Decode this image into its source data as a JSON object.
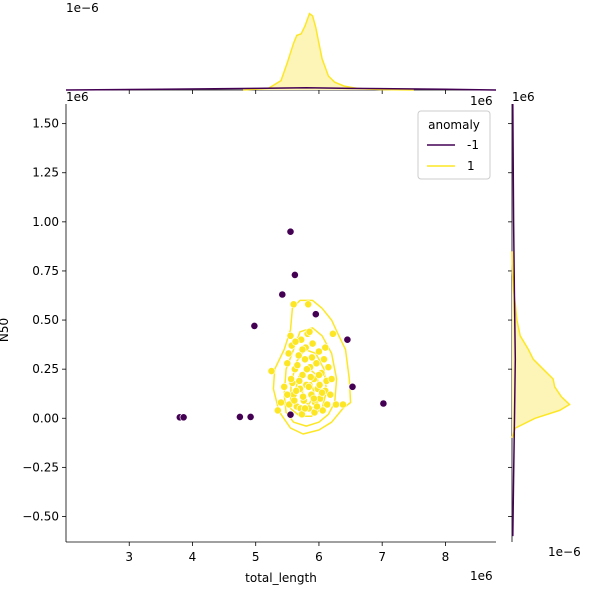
{
  "chart_data": {
    "type": "scatter",
    "xlabel": "total_length",
    "ylabel": "N50",
    "x_offset_label": "1e6",
    "y_offset_label": "1e6",
    "top_marginal_offset_label": "1e−6",
    "right_marginal_offset_label": "1e−6",
    "xlim": [
      2.0,
      8.8
    ],
    "ylim": [
      -0.63,
      1.6
    ],
    "xticks": [
      3,
      4,
      5,
      6,
      7,
      8
    ],
    "xtick_labels": [
      "3",
      "4",
      "5",
      "6",
      "7",
      "8"
    ],
    "yticks": [
      -0.5,
      -0.25,
      0.0,
      0.25,
      0.5,
      0.75,
      1.0,
      1.25,
      1.5
    ],
    "ytick_labels": [
      "−0.50",
      "−0.25",
      "0.00",
      "0.25",
      "0.50",
      "0.75",
      "1.00",
      "1.25",
      "1.50"
    ],
    "legend": {
      "title": "anomaly",
      "placement": "top-right",
      "entries": [
        {
          "label": "-1",
          "color": "#440154"
        },
        {
          "label": "1",
          "color": "#fde725"
        }
      ]
    },
    "colors": {
      "anomaly_neg1": "#440154",
      "anomaly_pos1": "#fde725",
      "kde_fill_pos1": "#fdf5b8",
      "axis": "#000000"
    },
    "marginal_density_x": {
      "series_neg1": [
        [
          2.0,
          0
        ],
        [
          3.5,
          0.01
        ],
        [
          5.0,
          0.02
        ],
        [
          5.8,
          0.03
        ],
        [
          6.5,
          0.02
        ],
        [
          8.0,
          0.01
        ],
        [
          8.8,
          0
        ]
      ],
      "series_pos1": [
        [
          4.8,
          0
        ],
        [
          5.2,
          0.02
        ],
        [
          5.4,
          0.12
        ],
        [
          5.5,
          0.35
        ],
        [
          5.6,
          0.6
        ],
        [
          5.65,
          0.7
        ],
        [
          5.72,
          0.72
        ],
        [
          5.78,
          0.82
        ],
        [
          5.85,
          0.98
        ],
        [
          5.9,
          0.95
        ],
        [
          5.95,
          0.8
        ],
        [
          6.0,
          0.6
        ],
        [
          6.05,
          0.4
        ],
        [
          6.15,
          0.18
        ],
        [
          6.25,
          0.1
        ],
        [
          6.4,
          0.05
        ],
        [
          6.6,
          0.02
        ],
        [
          7.0,
          0.005
        ],
        [
          7.5,
          0
        ]
      ]
    },
    "marginal_density_y": {
      "series_neg1": [
        [
          -0.6,
          0.01
        ],
        [
          -0.3,
          0.02
        ],
        [
          0.0,
          0.03
        ],
        [
          0.3,
          0.04
        ],
        [
          0.6,
          0.03
        ],
        [
          1.0,
          0.02
        ],
        [
          1.6,
          0.01
        ]
      ],
      "series_pos1": [
        [
          -0.1,
          0
        ],
        [
          -0.05,
          0.04
        ],
        [
          0.0,
          0.28
        ],
        [
          0.04,
          0.58
        ],
        [
          0.07,
          0.7
        ],
        [
          0.11,
          0.6
        ],
        [
          0.16,
          0.52
        ],
        [
          0.2,
          0.5
        ],
        [
          0.25,
          0.38
        ],
        [
          0.3,
          0.26
        ],
        [
          0.35,
          0.2
        ],
        [
          0.42,
          0.1
        ],
        [
          0.5,
          0.06
        ],
        [
          0.58,
          0.04
        ],
        [
          0.65,
          0.02
        ],
        [
          0.75,
          0.005
        ],
        [
          0.85,
          0
        ]
      ]
    },
    "series": [
      {
        "name": "-1",
        "color": "#440154",
        "points": [
          [
            5.55,
            0.95
          ],
          [
            5.62,
            0.73
          ],
          [
            5.42,
            0.63
          ],
          [
            5.95,
            0.53
          ],
          [
            4.98,
            0.47
          ],
          [
            6.45,
            0.4
          ],
          [
            6.53,
            0.16
          ],
          [
            7.02,
            0.075
          ],
          [
            5.55,
            0.018
          ],
          [
            3.8,
            0.005
          ],
          [
            3.86,
            0.005
          ],
          [
            4.75,
            0.007
          ],
          [
            4.92,
            0.007
          ]
        ]
      },
      {
        "name": "1",
        "color": "#fde725",
        "points": [
          [
            5.6,
            0.58
          ],
          [
            5.83,
            0.58
          ],
          [
            6.22,
            0.43
          ],
          [
            6.38,
            0.07
          ],
          [
            6.27,
            0.07
          ],
          [
            5.25,
            0.24
          ],
          [
            5.35,
            0.04
          ],
          [
            5.4,
            0.08
          ],
          [
            5.5,
            0.28
          ],
          [
            5.52,
            0.33
          ],
          [
            5.55,
            0.42
          ],
          [
            5.58,
            0.18
          ],
          [
            5.6,
            0.12
          ],
          [
            5.62,
            0.25
          ],
          [
            5.65,
            0.06
          ],
          [
            5.68,
            0.32
          ],
          [
            5.7,
            0.15
          ],
          [
            5.72,
            0.4
          ],
          [
            5.74,
            0.22
          ],
          [
            5.76,
            0.09
          ],
          [
            5.78,
            0.3
          ],
          [
            5.8,
            0.17
          ],
          [
            5.82,
            0.43
          ],
          [
            5.84,
            0.05
          ],
          [
            5.86,
            0.26
          ],
          [
            5.88,
            0.12
          ],
          [
            5.9,
            0.38
          ],
          [
            5.92,
            0.2
          ],
          [
            5.94,
            0.08
          ],
          [
            5.96,
            0.28
          ],
          [
            5.98,
            0.15
          ],
          [
            6.0,
            0.34
          ],
          [
            6.02,
            0.1
          ],
          [
            6.04,
            0.23
          ],
          [
            6.06,
            0.04
          ],
          [
            6.08,
            0.3
          ],
          [
            6.1,
            0.14
          ],
          [
            6.12,
            0.19
          ],
          [
            6.15,
            0.26
          ],
          [
            6.18,
            0.12
          ],
          [
            5.56,
            0.2
          ],
          [
            5.64,
            0.14
          ],
          [
            5.71,
            0.05
          ],
          [
            5.79,
            0.36
          ],
          [
            5.87,
            0.21
          ],
          [
            5.93,
            0.03
          ],
          [
            6.01,
            0.17
          ],
          [
            5.66,
            0.27
          ],
          [
            5.74,
            0.35
          ],
          [
            5.84,
            0.16
          ],
          [
            5.53,
            0.07
          ],
          [
            5.61,
            0.09
          ],
          [
            5.69,
            0.19
          ],
          [
            5.81,
            0.25
          ],
          [
            5.89,
            0.31
          ],
          [
            5.97,
            0.06
          ],
          [
            6.05,
            0.13
          ],
          [
            6.13,
            0.07
          ],
          [
            5.57,
            0.37
          ],
          [
            5.75,
            0.11
          ],
          [
            6.1,
            0.36
          ],
          [
            5.45,
            0.16
          ],
          [
            5.5,
            0.12
          ],
          [
            5.85,
            0.44
          ],
          [
            5.73,
            0.02
          ],
          [
            5.92,
            0.1
          ],
          [
            6.2,
            0.2
          ],
          [
            6.0,
            0.22
          ],
          [
            5.63,
            0.39
          ],
          [
            5.78,
            0.05
          ]
        ]
      }
    ],
    "contours": [
      [
        [
          5.4,
          0.02
        ],
        [
          5.55,
          -0.05
        ],
        [
          5.75,
          -0.08
        ],
        [
          6.0,
          -0.06
        ],
        [
          6.2,
          -0.02
        ],
        [
          6.38,
          0.05
        ],
        [
          6.5,
          0.08
        ],
        [
          6.48,
          0.2
        ],
        [
          6.42,
          0.35
        ],
        [
          6.3,
          0.43
        ],
        [
          6.2,
          0.5
        ],
        [
          6.05,
          0.56
        ],
        [
          5.9,
          0.6
        ],
        [
          5.7,
          0.6
        ],
        [
          5.58,
          0.56
        ],
        [
          5.55,
          0.45
        ],
        [
          5.45,
          0.35
        ],
        [
          5.3,
          0.25
        ],
        [
          5.28,
          0.15
        ],
        [
          5.35,
          0.06
        ]
      ],
      [
        [
          5.48,
          0.03
        ],
        [
          5.6,
          -0.02
        ],
        [
          5.8,
          -0.04
        ],
        [
          6.0,
          -0.02
        ],
        [
          6.15,
          0.02
        ],
        [
          6.25,
          0.08
        ],
        [
          6.28,
          0.2
        ],
        [
          6.2,
          0.33
        ],
        [
          6.05,
          0.42
        ],
        [
          5.9,
          0.46
        ],
        [
          5.7,
          0.44
        ],
        [
          5.6,
          0.35
        ],
        [
          5.48,
          0.25
        ],
        [
          5.45,
          0.12
        ]
      ],
      [
        [
          5.55,
          0.05
        ],
        [
          5.7,
          0.01
        ],
        [
          5.88,
          0.01
        ],
        [
          6.05,
          0.05
        ],
        [
          6.12,
          0.14
        ],
        [
          6.08,
          0.25
        ],
        [
          5.95,
          0.33
        ],
        [
          5.78,
          0.35
        ],
        [
          5.65,
          0.29
        ],
        [
          5.56,
          0.18
        ]
      ],
      [
        [
          5.63,
          0.07
        ],
        [
          5.78,
          0.04
        ],
        [
          5.95,
          0.06
        ],
        [
          6.02,
          0.14
        ],
        [
          5.96,
          0.22
        ],
        [
          5.82,
          0.26
        ],
        [
          5.68,
          0.21
        ],
        [
          5.62,
          0.13
        ]
      ],
      [
        [
          5.72,
          0.09
        ],
        [
          5.84,
          0.07
        ],
        [
          5.93,
          0.12
        ],
        [
          5.88,
          0.18
        ],
        [
          5.76,
          0.18
        ]
      ]
    ]
  }
}
